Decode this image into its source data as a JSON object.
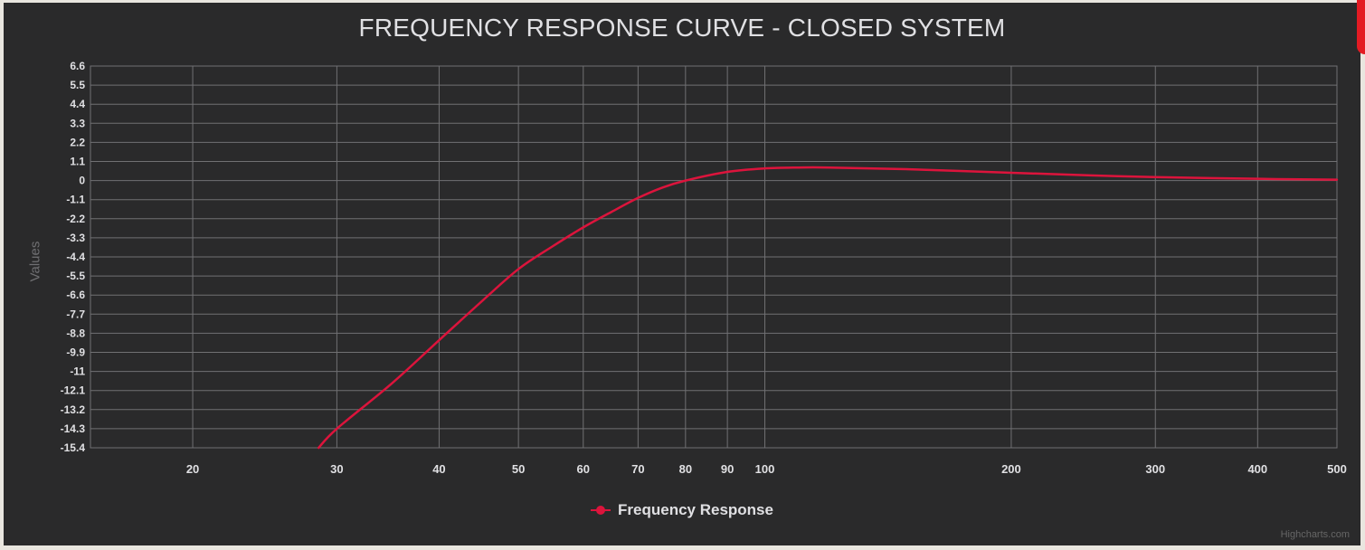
{
  "title": "FREQUENCY RESPONSE CURVE - CLOSED SYSTEM",
  "credits": "Highcharts.com",
  "colors": {
    "background": "#2a2a2b",
    "grid": "#707073",
    "series": "#dc143c",
    "text": "#e0e0e3"
  },
  "legend": {
    "items": [
      {
        "label": "Frequency Response",
        "color": "#dc143c"
      }
    ]
  },
  "chart_data": {
    "type": "line",
    "title": "FREQUENCY RESPONSE CURVE - CLOSED SYSTEM",
    "xlabel": "",
    "ylabel": "Values",
    "x_scale": "log",
    "xlim": [
      15,
      500
    ],
    "ylim": [
      -15.4,
      6.6
    ],
    "grid": true,
    "legend_position": "bottom-center",
    "x_ticks": [
      "20",
      "30",
      "40",
      "50",
      "60",
      "70",
      "80",
      "90",
      "100",
      "200",
      "300",
      "400",
      "500"
    ],
    "y_ticks": [
      "6.6",
      "5.5",
      "4.4",
      "3.3",
      "2.2",
      "1.1",
      "0",
      "-1.1",
      "-2.2",
      "-3.3",
      "-4.4",
      "-5.5",
      "-6.6",
      "-7.7",
      "-8.8",
      "-9.9",
      "-11",
      "-12.1",
      "-13.2",
      "-14.3",
      "-15.4"
    ],
    "series": [
      {
        "name": "Frequency Response",
        "color": "#dc143c",
        "x": [
          28.5,
          30,
          35,
          40,
          45,
          50,
          55,
          60,
          65,
          70,
          75,
          80,
          90,
          100,
          110,
          120,
          150,
          200,
          250,
          300,
          400,
          500
        ],
        "y": [
          -15.4,
          -14.3,
          -11.7,
          -9.2,
          -7.0,
          -5.1,
          -3.8,
          -2.7,
          -1.8,
          -1.0,
          -0.4,
          0.0,
          0.5,
          0.7,
          0.75,
          0.75,
          0.65,
          0.45,
          0.3,
          0.2,
          0.1,
          0.05
        ]
      }
    ]
  }
}
